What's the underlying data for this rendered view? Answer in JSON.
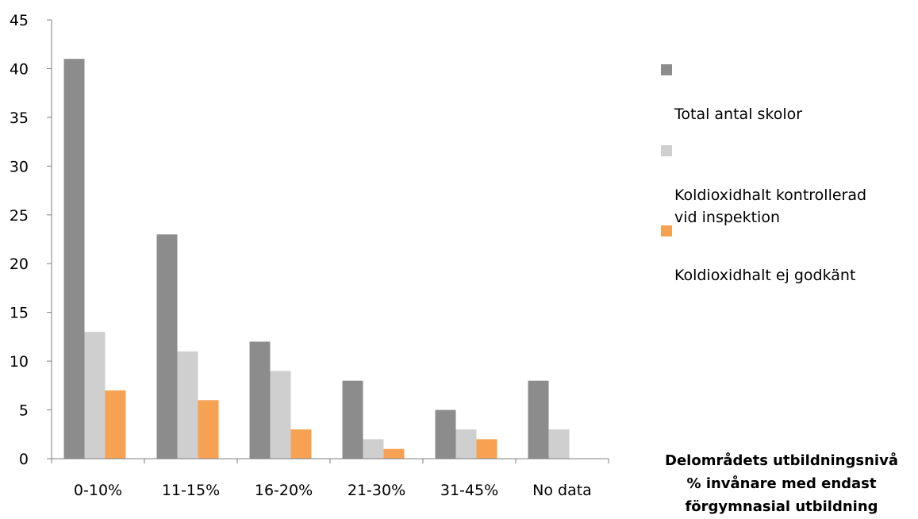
{
  "chart_data": {
    "type": "bar",
    "categories": [
      "0-10%",
      "11-15%",
      "16-20%",
      "21-30%",
      "31-45%",
      "No data"
    ],
    "series": [
      {
        "name": "Total antal skolor",
        "values": [
          41,
          23,
          12,
          8,
          5,
          8
        ],
        "color": "#8c8c8c"
      },
      {
        "name": "Koldioxidhalt kontrollerad vid inspektion",
        "values": [
          13,
          11,
          9,
          2,
          3,
          3
        ],
        "color": "#cfcfcf"
      },
      {
        "name": "Koldioxidhalt ej godkänt",
        "values": [
          7,
          6,
          3,
          1,
          2,
          0
        ],
        "color": "#f7a252"
      }
    ],
    "xlabel_lines": [
      "Delområdets utbildningsnivå",
      "% invånare med endast",
      "förgymnasial utbildning"
    ],
    "ylabel": "",
    "ylim": [
      0,
      45
    ],
    "yticks": [
      0,
      5,
      10,
      15,
      20,
      25,
      30,
      35,
      40,
      45
    ],
    "grid": false,
    "legend_position": "right"
  },
  "legend": {
    "items": [
      {
        "label": "Total antal skolor",
        "color": "#8c8c8c"
      },
      {
        "label": "Koldioxidhalt kontrollerad\nvid inspektion",
        "color": "#cfcfcf"
      },
      {
        "label": "Koldioxidhalt ej godkänt",
        "color": "#f7a252"
      }
    ]
  }
}
